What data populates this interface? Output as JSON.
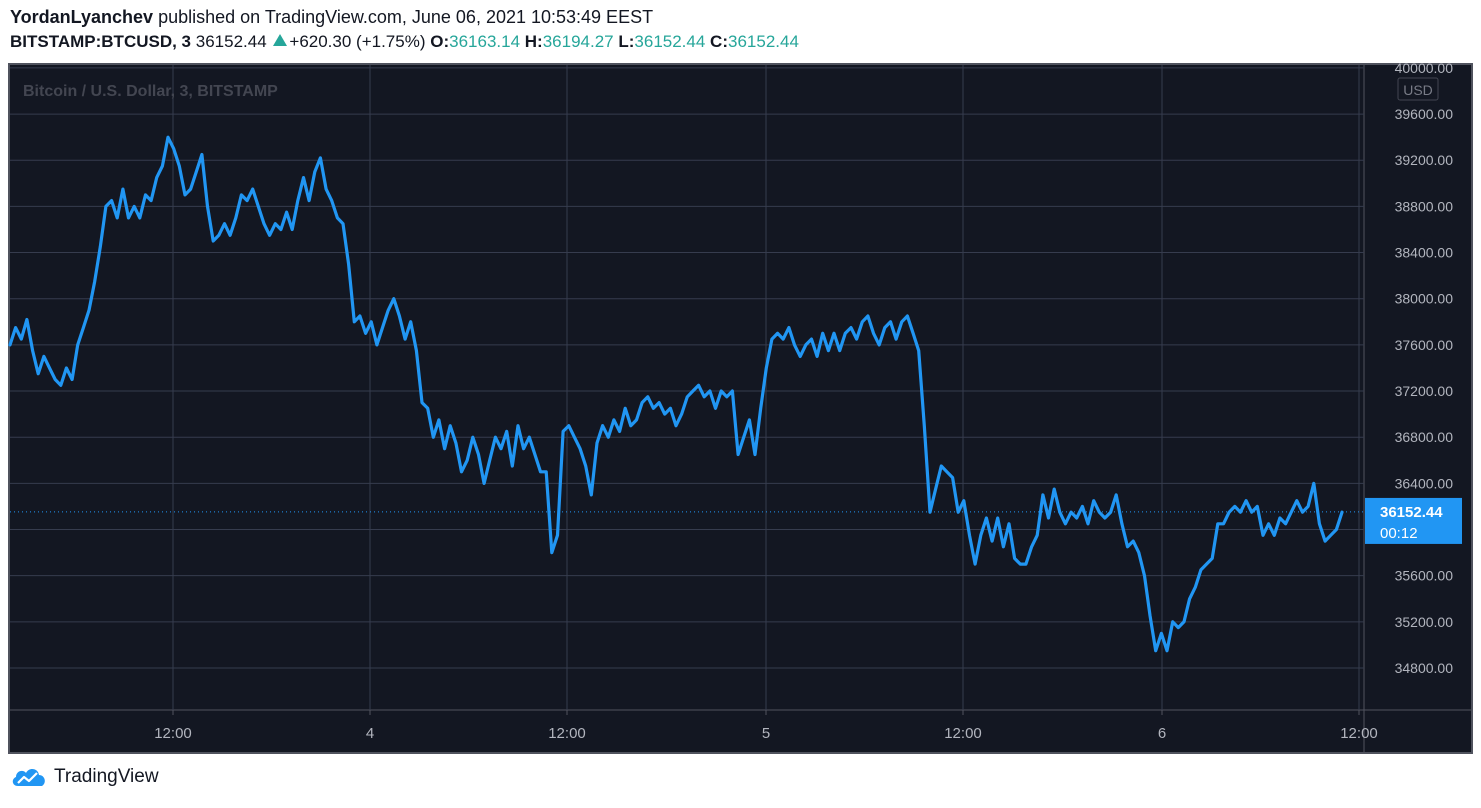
{
  "header": {
    "author": "YordanLyanchev",
    "published_text": "published on TradingView.com, June 06, 2021 10:53:49 EEST",
    "symbol": "BITSTAMP:BTCUSD, 3",
    "last_price": "36152.44",
    "change": "+620.30 (+1.75%)",
    "o_label": "O:",
    "o_value": "36163.14",
    "h_label": "H:",
    "h_value": "36194.27",
    "l_label": "L:",
    "l_value": "36152.44",
    "c_label": "C:",
    "c_value": "36152.44"
  },
  "colors": {
    "background": "#131722",
    "grid": "#363c4e",
    "line": "#2196f3",
    "axis_text": "#b2b5be",
    "up": "#26a69a"
  },
  "chart_data": {
    "type": "line",
    "title": "Bitcoin / U.S. Dollar, 3, BITSTAMP",
    "currency_label": "USD",
    "ylim": [
      34500,
      40100
    ],
    "y_ticks": [
      "40000.00",
      "39600.00",
      "39200.00",
      "38800.00",
      "38400.00",
      "38000.00",
      "37600.00",
      "37200.00",
      "36800.00",
      "36400.00",
      "36000.00",
      "35600.00",
      "35200.00",
      "34800.00"
    ],
    "x_ticks": [
      "12:00",
      "4",
      "12:00",
      "5",
      "12:00",
      "6",
      "12:00"
    ],
    "grid": true,
    "last_value": "36152.44",
    "countdown": "00:12",
    "series": [
      {
        "values": [
          [
            0,
            37600
          ],
          [
            1,
            37750
          ],
          [
            2,
            37650
          ],
          [
            3,
            37820
          ],
          [
            4,
            37550
          ],
          [
            5,
            37350
          ],
          [
            6,
            37500
          ],
          [
            7,
            37400
          ],
          [
            8,
            37300
          ],
          [
            9,
            37250
          ],
          [
            10,
            37400
          ],
          [
            11,
            37300
          ],
          [
            12,
            37600
          ],
          [
            13,
            37750
          ],
          [
            14,
            37900
          ],
          [
            15,
            38150
          ],
          [
            16,
            38450
          ],
          [
            17,
            38800
          ],
          [
            18,
            38850
          ],
          [
            19,
            38700
          ],
          [
            20,
            38950
          ],
          [
            21,
            38700
          ],
          [
            22,
            38800
          ],
          [
            23,
            38700
          ],
          [
            24,
            38900
          ],
          [
            25,
            38850
          ],
          [
            26,
            39050
          ],
          [
            27,
            39150
          ],
          [
            28,
            39400
          ],
          [
            29,
            39300
          ],
          [
            30,
            39150
          ],
          [
            31,
            38900
          ],
          [
            32,
            38950
          ],
          [
            33,
            39100
          ],
          [
            34,
            39250
          ],
          [
            35,
            38800
          ],
          [
            36,
            38500
          ],
          [
            37,
            38550
          ],
          [
            38,
            38650
          ],
          [
            39,
            38550
          ],
          [
            40,
            38700
          ],
          [
            41,
            38900
          ],
          [
            42,
            38850
          ],
          [
            43,
            38950
          ],
          [
            44,
            38800
          ],
          [
            45,
            38650
          ],
          [
            46,
            38550
          ],
          [
            47,
            38650
          ],
          [
            48,
            38600
          ],
          [
            49,
            38750
          ],
          [
            50,
            38600
          ],
          [
            51,
            38850
          ],
          [
            52,
            39050
          ],
          [
            53,
            38850
          ],
          [
            54,
            39100
          ],
          [
            55,
            39220
          ],
          [
            56,
            38950
          ],
          [
            57,
            38850
          ],
          [
            58,
            38700
          ],
          [
            59,
            38650
          ],
          [
            60,
            38300
          ],
          [
            61,
            37800
          ],
          [
            62,
            37850
          ],
          [
            63,
            37700
          ],
          [
            64,
            37800
          ],
          [
            65,
            37600
          ],
          [
            66,
            37750
          ],
          [
            67,
            37900
          ],
          [
            68,
            38000
          ],
          [
            69,
            37850
          ],
          [
            70,
            37650
          ],
          [
            71,
            37800
          ],
          [
            72,
            37550
          ],
          [
            73,
            37100
          ],
          [
            74,
            37050
          ],
          [
            75,
            36800
          ],
          [
            76,
            36950
          ],
          [
            77,
            36700
          ],
          [
            78,
            36900
          ],
          [
            79,
            36750
          ],
          [
            80,
            36500
          ],
          [
            81,
            36600
          ],
          [
            82,
            36800
          ],
          [
            83,
            36650
          ],
          [
            84,
            36400
          ],
          [
            85,
            36600
          ],
          [
            86,
            36800
          ],
          [
            87,
            36700
          ],
          [
            88,
            36850
          ],
          [
            89,
            36550
          ],
          [
            90,
            36900
          ],
          [
            91,
            36700
          ],
          [
            92,
            36800
          ],
          [
            93,
            36650
          ],
          [
            94,
            36500
          ],
          [
            95,
            36500
          ],
          [
            96,
            35800
          ],
          [
            97,
            35950
          ],
          [
            98,
            36850
          ],
          [
            99,
            36900
          ],
          [
            100,
            36800
          ],
          [
            101,
            36700
          ],
          [
            102,
            36550
          ],
          [
            103,
            36300
          ],
          [
            104,
            36750
          ],
          [
            105,
            36900
          ],
          [
            106,
            36800
          ],
          [
            107,
            36950
          ],
          [
            108,
            36850
          ],
          [
            109,
            37050
          ],
          [
            110,
            36900
          ],
          [
            111,
            36950
          ],
          [
            112,
            37100
          ],
          [
            113,
            37150
          ],
          [
            114,
            37050
          ],
          [
            115,
            37100
          ],
          [
            116,
            37000
          ],
          [
            117,
            37050
          ],
          [
            118,
            36900
          ],
          [
            119,
            37000
          ],
          [
            120,
            37150
          ],
          [
            121,
            37200
          ],
          [
            122,
            37250
          ],
          [
            123,
            37150
          ],
          [
            124,
            37200
          ],
          [
            125,
            37050
          ],
          [
            126,
            37200
          ],
          [
            127,
            37150
          ],
          [
            128,
            37200
          ],
          [
            129,
            36650
          ],
          [
            130,
            36800
          ],
          [
            131,
            36950
          ],
          [
            132,
            36650
          ],
          [
            133,
            37050
          ],
          [
            134,
            37400
          ],
          [
            135,
            37650
          ],
          [
            136,
            37700
          ],
          [
            137,
            37650
          ],
          [
            138,
            37750
          ],
          [
            139,
            37600
          ],
          [
            140,
            37500
          ],
          [
            141,
            37600
          ],
          [
            142,
            37650
          ],
          [
            143,
            37500
          ],
          [
            144,
            37700
          ],
          [
            145,
            37550
          ],
          [
            146,
            37700
          ],
          [
            147,
            37550
          ],
          [
            148,
            37700
          ],
          [
            149,
            37750
          ],
          [
            150,
            37650
          ],
          [
            151,
            37800
          ],
          [
            152,
            37850
          ],
          [
            153,
            37700
          ],
          [
            154,
            37600
          ],
          [
            155,
            37750
          ],
          [
            156,
            37800
          ],
          [
            157,
            37650
          ],
          [
            158,
            37800
          ],
          [
            159,
            37850
          ],
          [
            160,
            37700
          ],
          [
            161,
            37550
          ],
          [
            162,
            36900
          ],
          [
            163,
            36150
          ],
          [
            164,
            36350
          ],
          [
            165,
            36550
          ],
          [
            166,
            36500
          ],
          [
            167,
            36450
          ],
          [
            168,
            36150
          ],
          [
            169,
            36250
          ],
          [
            170,
            35950
          ],
          [
            171,
            35700
          ],
          [
            172,
            35950
          ],
          [
            173,
            36100
          ],
          [
            174,
            35900
          ],
          [
            175,
            36100
          ],
          [
            176,
            35850
          ],
          [
            177,
            36050
          ],
          [
            178,
            35750
          ],
          [
            179,
            35700
          ],
          [
            180,
            35700
          ],
          [
            181,
            35850
          ],
          [
            182,
            35950
          ],
          [
            183,
            36300
          ],
          [
            184,
            36100
          ],
          [
            185,
            36350
          ],
          [
            186,
            36150
          ],
          [
            187,
            36050
          ],
          [
            188,
            36150
          ],
          [
            189,
            36100
          ],
          [
            190,
            36200
          ],
          [
            191,
            36050
          ],
          [
            192,
            36250
          ],
          [
            193,
            36150
          ],
          [
            194,
            36100
          ],
          [
            195,
            36150
          ],
          [
            196,
            36300
          ],
          [
            197,
            36050
          ],
          [
            198,
            35850
          ],
          [
            199,
            35900
          ],
          [
            200,
            35800
          ],
          [
            201,
            35600
          ],
          [
            202,
            35250
          ],
          [
            203,
            34950
          ],
          [
            204,
            35100
          ],
          [
            205,
            34950
          ],
          [
            206,
            35200
          ],
          [
            207,
            35150
          ],
          [
            208,
            35200
          ],
          [
            209,
            35400
          ],
          [
            210,
            35500
          ],
          [
            211,
            35650
          ],
          [
            212,
            35700
          ],
          [
            213,
            35750
          ],
          [
            214,
            36050
          ],
          [
            215,
            36050
          ],
          [
            216,
            36150
          ],
          [
            217,
            36200
          ],
          [
            218,
            36150
          ],
          [
            219,
            36250
          ],
          [
            220,
            36150
          ],
          [
            221,
            36200
          ],
          [
            222,
            35950
          ],
          [
            223,
            36050
          ],
          [
            224,
            35950
          ],
          [
            225,
            36100
          ],
          [
            226,
            36050
          ],
          [
            227,
            36150
          ],
          [
            228,
            36250
          ],
          [
            229,
            36150
          ],
          [
            230,
            36200
          ],
          [
            231,
            36400
          ],
          [
            232,
            36050
          ],
          [
            233,
            35900
          ],
          [
            234,
            35950
          ],
          [
            235,
            36000
          ],
          [
            236,
            36150
          ]
        ]
      }
    ]
  },
  "footer": {
    "brand": "TradingView"
  }
}
